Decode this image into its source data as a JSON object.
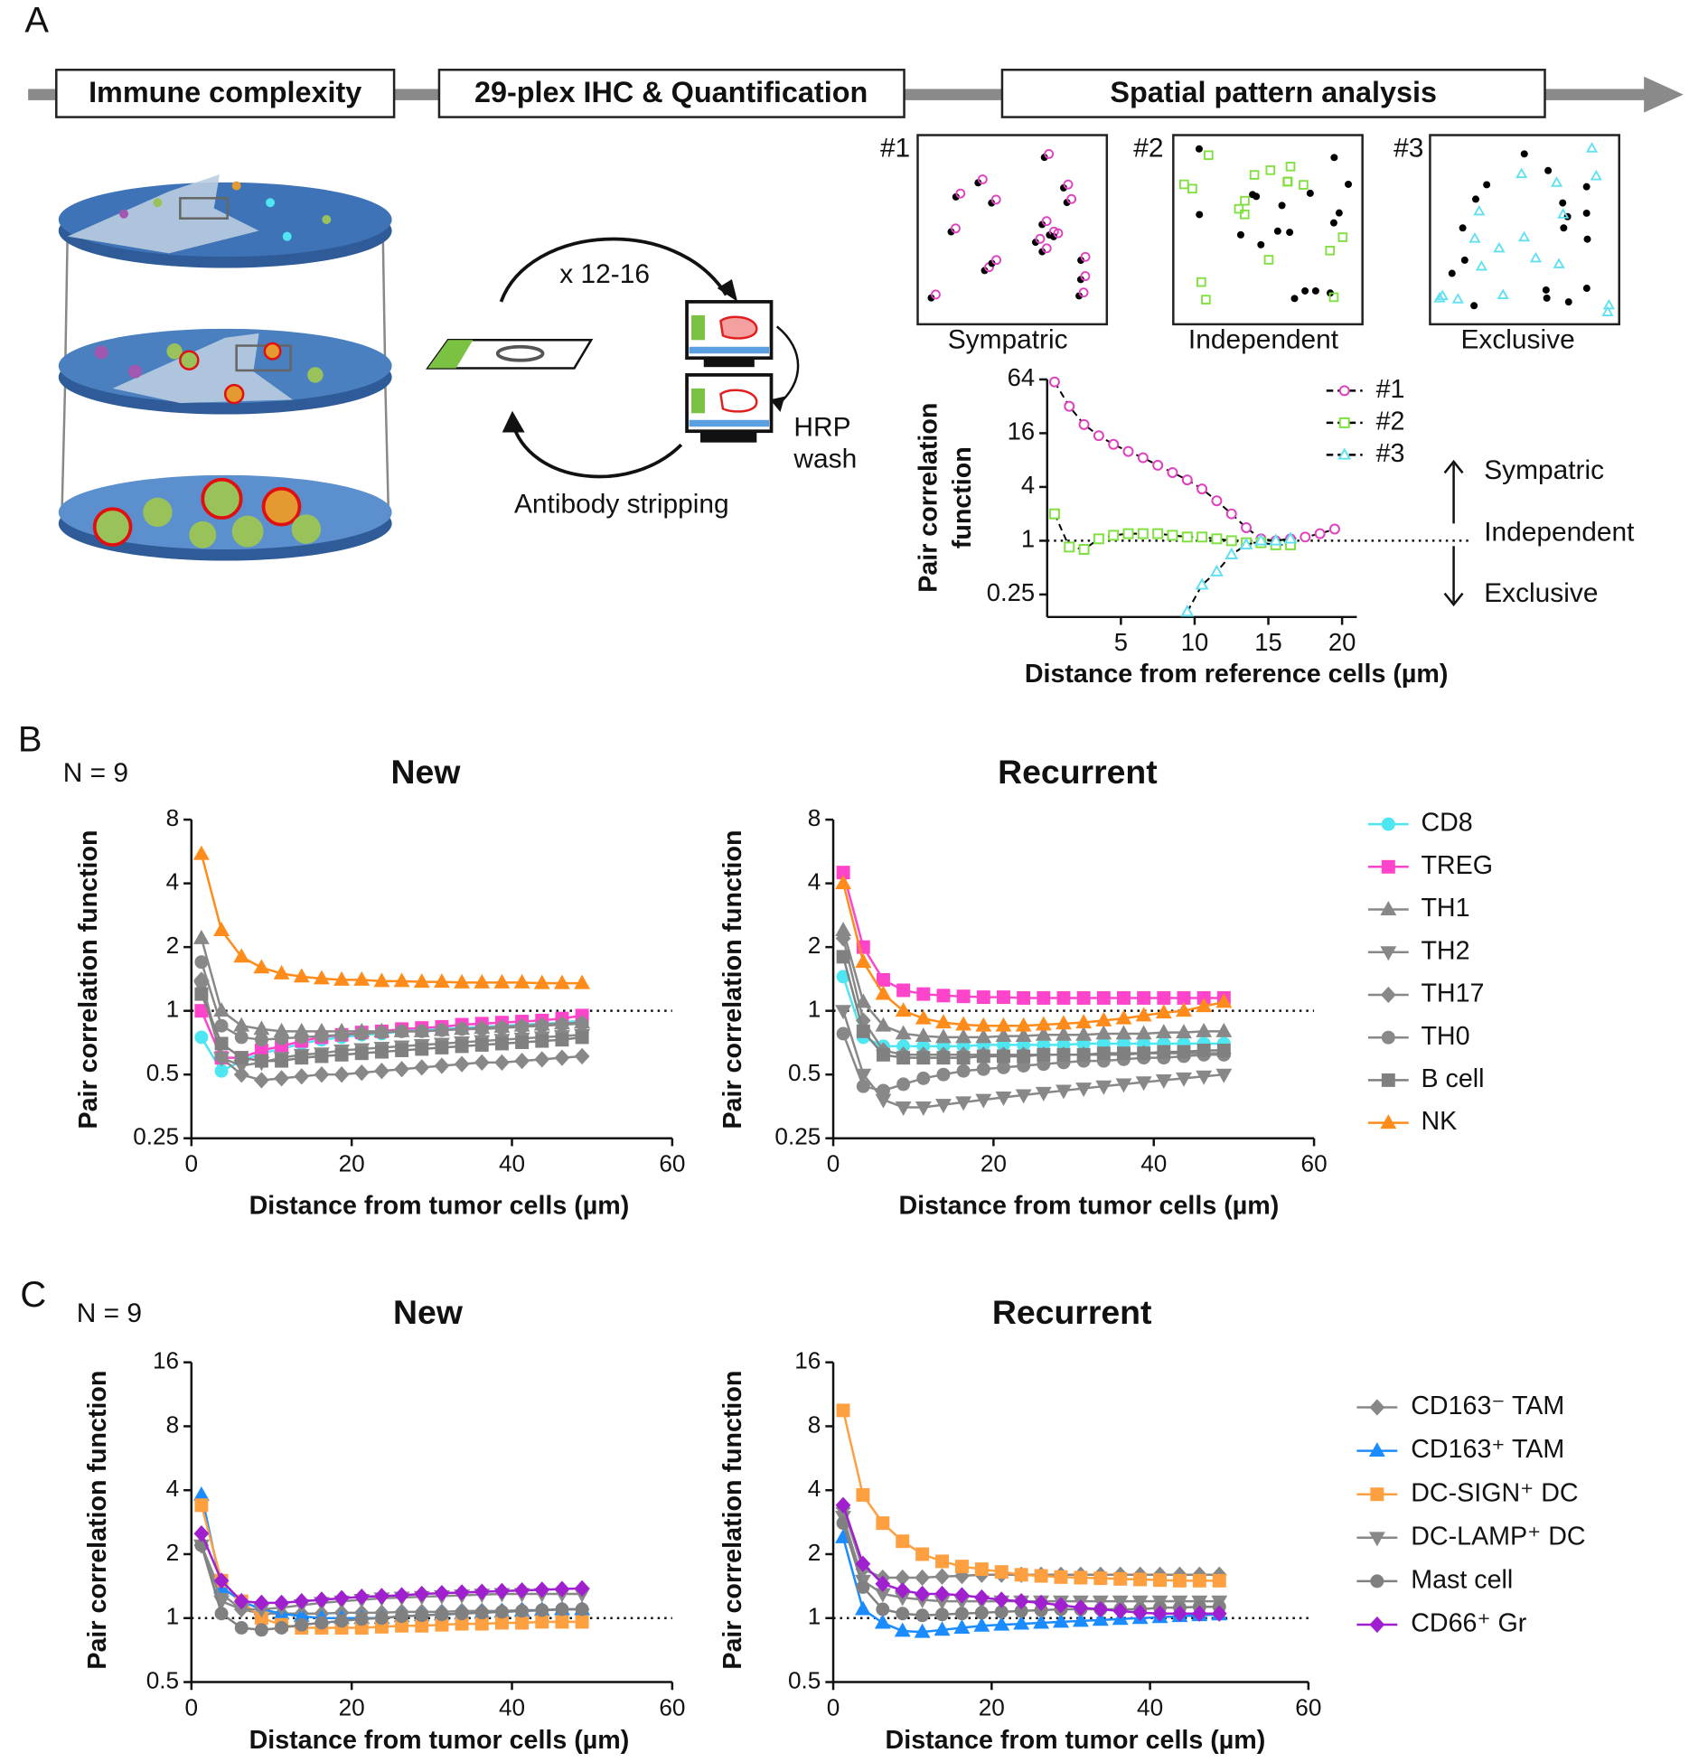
{
  "panel_labels": [
    "A",
    "B",
    "C"
  ],
  "pipeline": {
    "steps": [
      "Immune complexity",
      "29-plex IHC & Quantification",
      "Spatial pattern analysis"
    ]
  },
  "cycle": {
    "repeat": "x 12-16",
    "wash": [
      "HRP",
      "wash"
    ],
    "stripping": "Antibody stripping"
  },
  "patterns": [
    {
      "id": "#1",
      "label": "Sympatric"
    },
    {
      "id": "#2",
      "label": "Independent"
    },
    {
      "id": "#3",
      "label": "Exclusive"
    }
  ],
  "chart_data": [
    {
      "type": "line",
      "ylabel_lines": [
        "Pair correlation",
        "function"
      ],
      "xlabel": "Distance from reference cells (µm)",
      "yscale": "log",
      "ylim": [
        0.14,
        64
      ],
      "yticks": [
        0.25,
        1,
        4,
        16,
        64
      ],
      "xlim": [
        0,
        21
      ],
      "xticks": [
        5,
        10,
        15,
        20
      ],
      "hline": 1,
      "line_color": "#000000",
      "line_style": "dashed",
      "marker_fill": false,
      "legend": "right",
      "annotations": [
        "Sympatric",
        "Independent",
        "Exclusive"
      ],
      "x": [
        0.5,
        1.5,
        2.5,
        3.5,
        4.5,
        5.5,
        6.5,
        7.5,
        8.5,
        9.5,
        10.5,
        11.5,
        12.5,
        13.5,
        14.5,
        15.5,
        16.5,
        17.5,
        18.5,
        19.5
      ],
      "series": [
        {
          "name": "#1",
          "color": "#e040c0",
          "marker": "circle",
          "values": [
            60,
            32,
            20,
            15,
            12,
            10,
            8.5,
            7,
            5.8,
            4.8,
            3.8,
            2.8,
            2,
            1.4,
            1.05,
            1,
            1.05,
            1.1,
            1.2,
            1.35
          ]
        },
        {
          "name": "#2",
          "color": "#80e040",
          "marker": "square",
          "values": [
            2,
            0.85,
            0.8,
            1.05,
            1.15,
            1.2,
            1.2,
            1.2,
            1.15,
            1.1,
            1.1,
            1.05,
            1,
            0.95,
            0.95,
            0.9,
            0.9,
            null,
            null,
            null
          ]
        },
        {
          "name": "#3",
          "color": "#60e0f0",
          "marker": "triangle-up",
          "values": [
            null,
            null,
            null,
            null,
            null,
            null,
            null,
            null,
            null,
            0.16,
            0.32,
            0.45,
            0.7,
            0.9,
            1,
            1,
            1.05,
            null,
            null,
            null
          ]
        }
      ]
    },
    {
      "type": "line",
      "title": "New",
      "annotation": "N = 9",
      "ylabel": "Pair correlation function",
      "xlabel": "Distance from tumor cells (µm)",
      "yscale": "log",
      "ylim": [
        0.25,
        8
      ],
      "yticks": [
        0.25,
        0.5,
        1,
        2,
        4,
        8
      ],
      "xlim": [
        0,
        60
      ],
      "xticks": [
        0,
        20,
        40,
        60
      ],
      "hline": 1,
      "legend": "right",
      "x": [
        1.25,
        3.75,
        6.25,
        8.75,
        11.25,
        13.75,
        16.25,
        18.75,
        21.25,
        23.75,
        26.25,
        28.75,
        31.25,
        33.75,
        36.25,
        38.75,
        41.25,
        43.75,
        46.25,
        48.75
      ],
      "series": [
        {
          "name": "CD8",
          "color": "#4ee6f0",
          "marker": "circle",
          "values": [
            0.75,
            0.52,
            0.58,
            0.63,
            0.66,
            0.7,
            0.73,
            0.75,
            0.77,
            0.78,
            0.8,
            0.81,
            0.82,
            0.83,
            0.84,
            0.85,
            0.86,
            0.87,
            0.88,
            0.9
          ]
        },
        {
          "name": "TREG",
          "color": "#ff44cc",
          "marker": "square",
          "values": [
            1,
            0.6,
            0.6,
            0.65,
            0.68,
            0.72,
            0.75,
            0.77,
            0.79,
            0.8,
            0.82,
            0.83,
            0.84,
            0.86,
            0.87,
            0.88,
            0.89,
            0.9,
            0.92,
            0.95
          ]
        },
        {
          "name": "TH1",
          "color": "#888888",
          "marker": "triangle-up",
          "values": [
            2.2,
            1,
            0.85,
            0.82,
            0.8,
            0.8,
            0.8,
            0.8,
            0.8,
            0.8,
            0.8,
            0.8,
            0.81,
            0.82,
            0.83,
            0.84,
            0.85,
            0.86,
            0.87,
            0.88
          ]
        },
        {
          "name": "TH2",
          "color": "#888888",
          "marker": "triangle-down",
          "values": [
            1.3,
            0.6,
            0.55,
            0.57,
            0.6,
            0.62,
            0.63,
            0.65,
            0.66,
            0.67,
            0.68,
            0.69,
            0.7,
            0.71,
            0.72,
            0.73,
            0.74,
            0.75,
            0.76,
            0.77
          ]
        },
        {
          "name": "TH17",
          "color": "#888888",
          "marker": "diamond",
          "values": [
            1.4,
            0.6,
            0.5,
            0.47,
            0.48,
            0.49,
            0.5,
            0.5,
            0.51,
            0.52,
            0.53,
            0.54,
            0.55,
            0.56,
            0.57,
            0.57,
            0.58,
            0.59,
            0.6,
            0.61
          ]
        },
        {
          "name": "TH0",
          "color": "#888888",
          "marker": "circle",
          "values": [
            1.7,
            0.85,
            0.75,
            0.73,
            0.74,
            0.75,
            0.76,
            0.77,
            0.78,
            0.79,
            0.8,
            0.8,
            0.81,
            0.82,
            0.82,
            0.83,
            0.84,
            0.85,
            0.86,
            0.87
          ]
        },
        {
          "name": "B cell",
          "color": "#808080",
          "marker": "square",
          "values": [
            1.2,
            0.7,
            0.6,
            0.58,
            0.58,
            0.6,
            0.61,
            0.62,
            0.63,
            0.64,
            0.65,
            0.66,
            0.67,
            0.68,
            0.69,
            0.7,
            0.71,
            0.72,
            0.73,
            0.75
          ]
        },
        {
          "name": "NK",
          "color": "#ff8c1a",
          "marker": "triangle-up",
          "values": [
            5.5,
            2.4,
            1.8,
            1.6,
            1.5,
            1.45,
            1.42,
            1.4,
            1.4,
            1.38,
            1.38,
            1.37,
            1.37,
            1.36,
            1.36,
            1.36,
            1.36,
            1.35,
            1.35,
            1.35
          ]
        }
      ]
    },
    {
      "type": "line",
      "title": "Recurrent",
      "ylabel": "Pair correlation function",
      "xlabel": "Distance from tumor cells (µm)",
      "yscale": "log",
      "ylim": [
        0.25,
        8
      ],
      "yticks": [
        0.25,
        0.5,
        1,
        2,
        4,
        8
      ],
      "xlim": [
        0,
        60
      ],
      "xticks": [
        0,
        20,
        40,
        60
      ],
      "hline": 1,
      "x": [
        1.25,
        3.75,
        6.25,
        8.75,
        11.25,
        13.75,
        16.25,
        18.75,
        21.25,
        23.75,
        26.25,
        28.75,
        31.25,
        33.75,
        36.25,
        38.75,
        41.25,
        43.75,
        46.25,
        48.75
      ],
      "series": [
        {
          "color": "#4ee6f0",
          "marker": "circle",
          "values": [
            1.45,
            0.75,
            0.68,
            0.68,
            0.68,
            0.68,
            0.68,
            0.69,
            0.69,
            0.69,
            0.69,
            0.69,
            0.7,
            0.7,
            0.7,
            0.7,
            0.7,
            0.7,
            0.7,
            0.7
          ]
        },
        {
          "color": "#ff44cc",
          "marker": "square",
          "values": [
            4.5,
            2,
            1.4,
            1.25,
            1.2,
            1.18,
            1.17,
            1.16,
            1.16,
            1.15,
            1.15,
            1.15,
            1.15,
            1.15,
            1.15,
            1.15,
            1.15,
            1.15,
            1.15,
            1.15
          ]
        },
        {
          "color": "#888888",
          "marker": "triangle-up",
          "values": [
            2.4,
            1.1,
            0.85,
            0.78,
            0.76,
            0.75,
            0.75,
            0.75,
            0.76,
            0.76,
            0.77,
            0.77,
            0.77,
            0.78,
            0.78,
            0.78,
            0.79,
            0.79,
            0.8,
            0.8
          ]
        },
        {
          "color": "#888888",
          "marker": "triangle-down",
          "values": [
            1,
            0.5,
            0.38,
            0.35,
            0.35,
            0.36,
            0.37,
            0.38,
            0.39,
            0.4,
            0.41,
            0.42,
            0.43,
            0.44,
            0.45,
            0.46,
            0.47,
            0.48,
            0.49,
            0.5
          ]
        },
        {
          "color": "#888888",
          "marker": "diamond",
          "values": [
            2.2,
            0.9,
            0.65,
            0.62,
            0.62,
            0.62,
            0.62,
            0.62,
            0.62,
            0.62,
            0.62,
            0.62,
            0.62,
            0.62,
            0.62,
            0.63,
            0.63,
            0.63,
            0.63,
            0.63
          ]
        },
        {
          "color": "#888888",
          "marker": "circle",
          "values": [
            0.78,
            0.44,
            0.42,
            0.45,
            0.48,
            0.5,
            0.52,
            0.53,
            0.54,
            0.55,
            0.56,
            0.57,
            0.58,
            0.58,
            0.59,
            0.6,
            0.6,
            0.61,
            0.62,
            0.62
          ]
        },
        {
          "color": "#808080",
          "marker": "square",
          "values": [
            1.8,
            0.8,
            0.62,
            0.6,
            0.6,
            0.6,
            0.6,
            0.61,
            0.61,
            0.61,
            0.62,
            0.62,
            0.62,
            0.63,
            0.63,
            0.63,
            0.64,
            0.64,
            0.65,
            0.65
          ]
        },
        {
          "color": "#ff8c1a",
          "marker": "triangle-up",
          "values": [
            4,
            1.7,
            1.2,
            1,
            0.92,
            0.88,
            0.86,
            0.85,
            0.85,
            0.85,
            0.86,
            0.87,
            0.88,
            0.9,
            0.92,
            0.95,
            0.98,
            1,
            1.05,
            1.1
          ]
        }
      ]
    },
    {
      "type": "line",
      "title": "New",
      "annotation": "N = 9",
      "ylabel": "Pair correlation function",
      "xlabel": "Distance from tumor cells (µm)",
      "yscale": "log",
      "ylim": [
        0.5,
        16
      ],
      "yticks": [
        0.5,
        1,
        2,
        4,
        8,
        16
      ],
      "xlim": [
        0,
        60
      ],
      "xticks": [
        0,
        20,
        40,
        60
      ],
      "hline": 1,
      "legend": "right",
      "x": [
        1.25,
        3.75,
        6.25,
        8.75,
        11.25,
        13.75,
        16.25,
        18.75,
        21.25,
        23.75,
        26.25,
        28.75,
        31.25,
        33.75,
        36.25,
        38.75,
        41.25,
        43.75,
        46.25,
        48.75
      ],
      "series": [
        {
          "name": "CD163⁻ TAM",
          "color": "#888888",
          "marker": "diamond",
          "values": [
            2.2,
            1.3,
            1.1,
            1.05,
            1.05,
            1.05,
            1.05,
            1.06,
            1.06,
            1.06,
            1.07,
            1.07,
            1.07,
            1.08,
            1.08,
            1.08,
            1.09,
            1.09,
            1.1,
            1.1
          ]
        },
        {
          "name": "CD163⁺ TAM",
          "color": "#1a8cff",
          "marker": "triangle-up",
          "values": [
            3.8,
            1.4,
            1.2,
            1.1,
            1.05,
            1.02,
            1,
            1,
            1,
            1,
            1.02,
            1.03,
            1.04,
            1.05,
            1.06,
            1.07,
            1.08,
            1.09,
            1.1,
            1.1
          ]
        },
        {
          "name": "DC-SIGN⁺ DC",
          "color": "#ffa040",
          "marker": "square",
          "values": [
            3.4,
            1.5,
            1.2,
            1,
            0.93,
            0.9,
            0.9,
            0.9,
            0.9,
            0.91,
            0.92,
            0.92,
            0.93,
            0.94,
            0.94,
            0.95,
            0.95,
            0.96,
            0.96,
            0.96
          ]
        },
        {
          "name": "DC-LAMP⁺ DC",
          "color": "#888888",
          "marker": "triangle-down",
          "values": [
            2.2,
            1.2,
            1.1,
            1.1,
            1.12,
            1.15,
            1.18,
            1.2,
            1.22,
            1.24,
            1.25,
            1.26,
            1.27,
            1.28,
            1.29,
            1.3,
            1.3,
            1.3,
            1.3,
            1.3
          ]
        },
        {
          "name": "Mast cell",
          "color": "#808080",
          "marker": "circle",
          "values": [
            2.2,
            1.05,
            0.9,
            0.88,
            0.9,
            0.93,
            0.95,
            0.97,
            0.99,
            1,
            1.02,
            1.03,
            1.04,
            1.05,
            1.06,
            1.07,
            1.08,
            1.09,
            1.1,
            1.1
          ]
        },
        {
          "name": "CD66⁺ Gr",
          "color": "#a020d0",
          "marker": "diamond",
          "values": [
            2.5,
            1.5,
            1.2,
            1.18,
            1.18,
            1.2,
            1.22,
            1.24,
            1.26,
            1.27,
            1.28,
            1.3,
            1.31,
            1.32,
            1.33,
            1.34,
            1.35,
            1.36,
            1.37,
            1.38
          ]
        }
      ]
    },
    {
      "type": "line",
      "title": "Recurrent",
      "ylabel": "Pair correlation function",
      "xlabel": "Distance from tumor cells (µm)",
      "yscale": "log",
      "ylim": [
        0.5,
        16
      ],
      "yticks": [
        0.5,
        1,
        2,
        4,
        8,
        16
      ],
      "xlim": [
        0,
        60
      ],
      "xticks": [
        0,
        20,
        40,
        60
      ],
      "hline": 1,
      "x": [
        1.25,
        3.75,
        6.25,
        8.75,
        11.25,
        13.75,
        16.25,
        18.75,
        21.25,
        23.75,
        26.25,
        28.75,
        31.25,
        33.75,
        36.25,
        38.75,
        41.25,
        43.75,
        46.25,
        48.75
      ],
      "series": [
        {
          "color": "#888888",
          "marker": "diamond",
          "values": [
            3.3,
            1.7,
            1.55,
            1.55,
            1.55,
            1.57,
            1.58,
            1.6,
            1.6,
            1.6,
            1.6,
            1.6,
            1.6,
            1.6,
            1.6,
            1.6,
            1.6,
            1.6,
            1.6,
            1.6
          ]
        },
        {
          "color": "#1a8cff",
          "marker": "triangle-up",
          "values": [
            2.4,
            1.1,
            0.95,
            0.87,
            0.86,
            0.88,
            0.9,
            0.92,
            0.93,
            0.94,
            0.95,
            0.96,
            0.97,
            0.98,
            0.99,
            1,
            1.01,
            1.02,
            1.03,
            1.04
          ]
        },
        {
          "color": "#ffa040",
          "marker": "square",
          "values": [
            9.5,
            3.8,
            2.8,
            2.3,
            2,
            1.85,
            1.75,
            1.7,
            1.65,
            1.6,
            1.58,
            1.56,
            1.55,
            1.54,
            1.53,
            1.52,
            1.51,
            1.5,
            1.5,
            1.5
          ]
        },
        {
          "color": "#888888",
          "marker": "triangle-down",
          "values": [
            3,
            1.5,
            1.3,
            1.25,
            1.22,
            1.2,
            1.2,
            1.2,
            1.2,
            1.2,
            1.2,
            1.2,
            1.2,
            1.2,
            1.2,
            1.2,
            1.2,
            1.2,
            1.2,
            1.2
          ]
        },
        {
          "color": "#808080",
          "marker": "circle",
          "values": [
            2.8,
            1.4,
            1.1,
            1.05,
            1.03,
            1.04,
            1.05,
            1.06,
            1.07,
            1.08,
            1.09,
            1.1,
            1.1,
            1.1,
            1.1,
            1.1,
            1.12,
            1.12,
            1.13,
            1.13
          ]
        },
        {
          "color": "#a020d0",
          "marker": "diamond",
          "values": [
            3.4,
            1.8,
            1.45,
            1.35,
            1.3,
            1.3,
            1.28,
            1.25,
            1.22,
            1.2,
            1.18,
            1.15,
            1.12,
            1.1,
            1.08,
            1.06,
            1.05,
            1.05,
            1.05,
            1.05
          ]
        }
      ]
    }
  ]
}
